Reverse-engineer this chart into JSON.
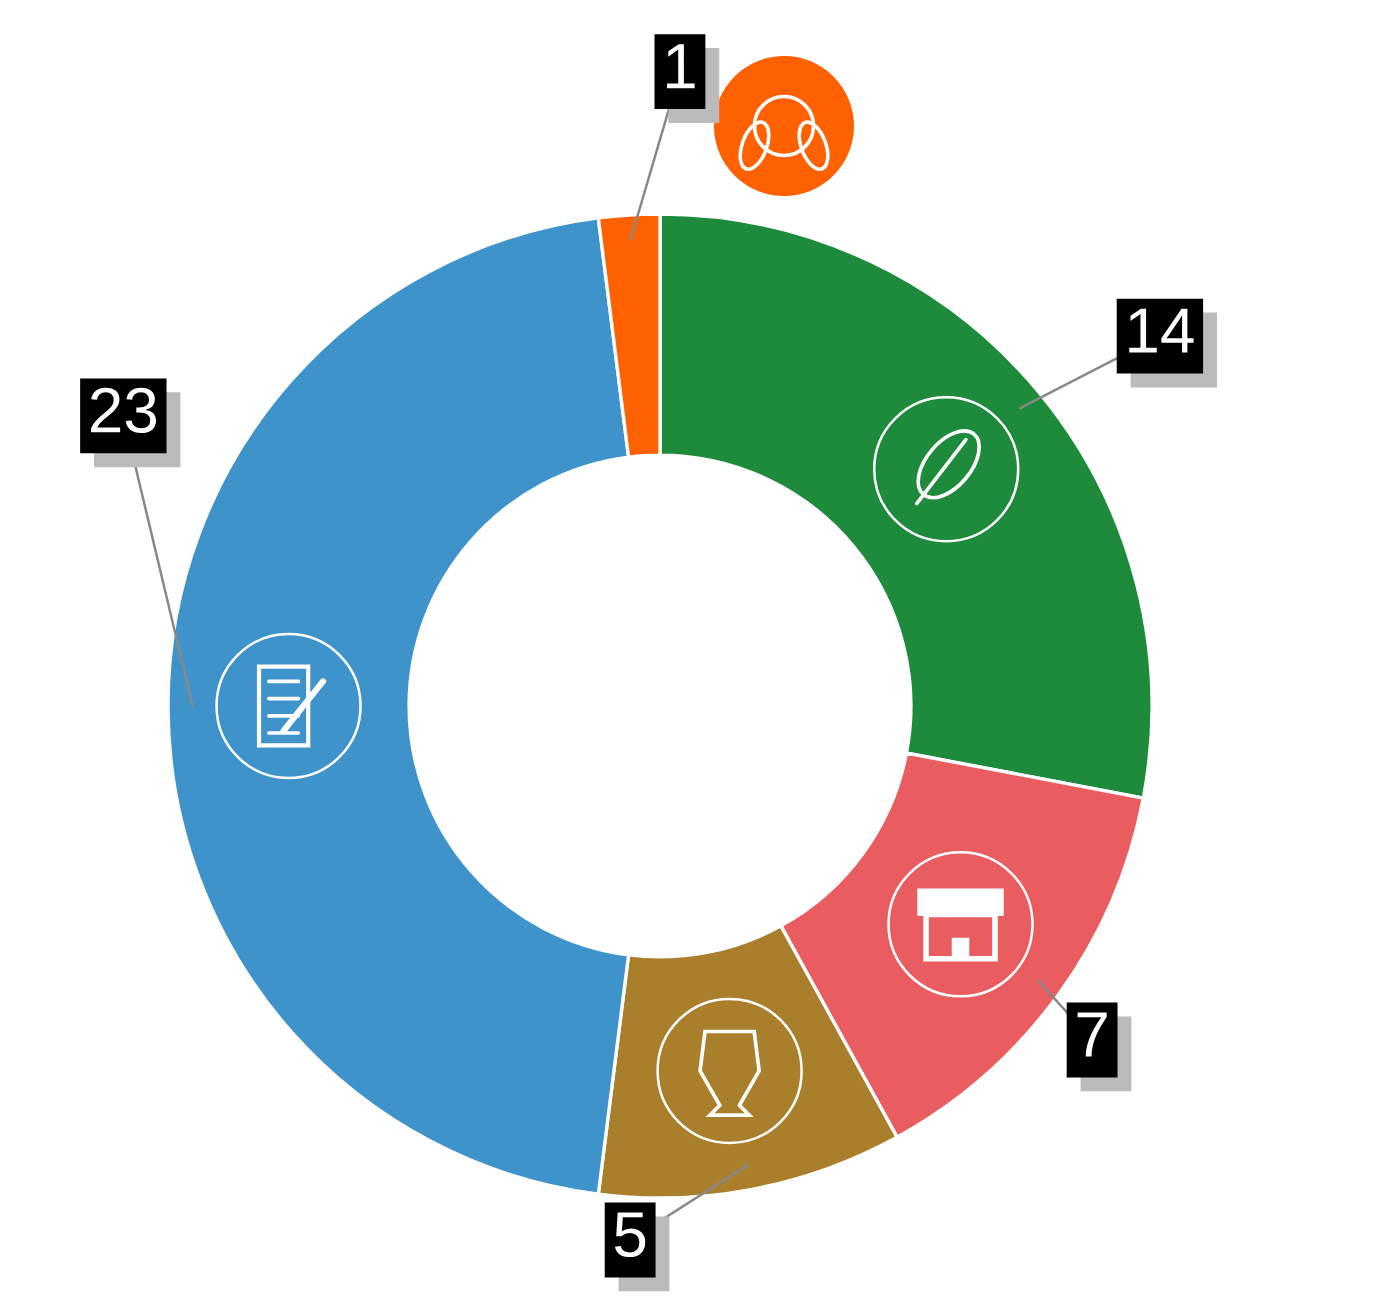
{
  "chart_data": {
    "type": "donut",
    "categories": [
      null,
      null,
      null,
      null,
      null
    ],
    "values": [
      14,
      7,
      5,
      23,
      1
    ],
    "colors": [
      "#1e8b3c",
      "#e95d61",
      "#aa7f2c",
      "#3e94ca",
      "#ff6000"
    ],
    "data_labels": true
  }
}
